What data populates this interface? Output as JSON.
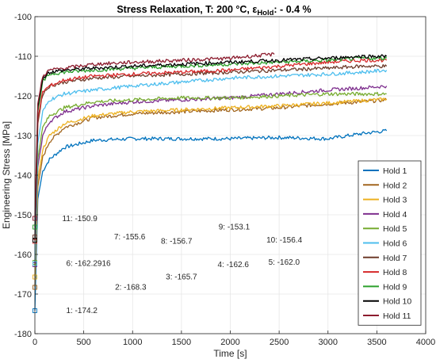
{
  "chart_data": {
    "type": "line",
    "title_main": "Stress Relaxation, T: 200 °C, ε",
    "title_sub": "Hold",
    "title_tail": ": - 0.4 %",
    "xlabel": "Time [s]",
    "ylabel": "Engineering Stress [MPa]",
    "xlim": [
      0,
      4000
    ],
    "ylim": [
      -180,
      -100
    ],
    "xticks": [
      0,
      500,
      1000,
      1500,
      2000,
      2500,
      3000,
      3500,
      4000
    ],
    "yticks": [
      -100,
      -110,
      -120,
      -130,
      -140,
      -150,
      -160,
      -170,
      -180
    ],
    "grid": true,
    "legend_position": "bottom-right",
    "series": [
      {
        "name": "Hold 1",
        "color": "#0072BD",
        "start": -174.2,
        "x": [
          0,
          30,
          80,
          150,
          300,
          600,
          1000,
          1500,
          2000,
          2500,
          3000,
          3350,
          3600
        ],
        "y": [
          -174.2,
          -146,
          -139,
          -136,
          -133,
          -131.2,
          -130.8,
          -130.8,
          -130.8,
          -130.5,
          -130.8,
          -129.5,
          -128.8
        ]
      },
      {
        "name": "Hold 2",
        "color": "#A2661F",
        "start": -168.3,
        "x": [
          0,
          30,
          80,
          150,
          300,
          600,
          1000,
          1500,
          2000,
          2500,
          3000,
          3350,
          3600
        ],
        "y": [
          -168.3,
          -143,
          -135.5,
          -131.5,
          -128,
          -125.5,
          -124.5,
          -124,
          -123.5,
          -123,
          -122,
          -121.5,
          -121
        ]
      },
      {
        "name": "Hold 3",
        "color": "#EDB120",
        "start": -165.7,
        "x": [
          0,
          30,
          80,
          150,
          300,
          600,
          1000,
          1500,
          2000,
          2500,
          3000,
          3350,
          3600
        ],
        "y": [
          -165.7,
          -141,
          -133.5,
          -130,
          -127,
          -125,
          -124,
          -123.5,
          -123,
          -122.5,
          -121.8,
          -121.2,
          -120.8
        ]
      },
      {
        "name": "Hold 4",
        "color": "#7E2F8E",
        "start": -162.6,
        "x": [
          0,
          30,
          80,
          150,
          300,
          600,
          1000,
          1500,
          2000,
          2500,
          3000,
          3350,
          3600
        ],
        "y": [
          -162.6,
          -138,
          -130,
          -126.5,
          -124,
          -122.5,
          -121.5,
          -121,
          -120.5,
          -119.5,
          -118.5,
          -118,
          -117.5
        ]
      },
      {
        "name": "Hold 5",
        "color": "#77AC30",
        "start": -162.0,
        "x": [
          0,
          30,
          80,
          150,
          300,
          600,
          1000,
          1500,
          2000,
          2500,
          3000,
          3350,
          3600
        ],
        "y": [
          -162.0,
          -136,
          -128,
          -125,
          -123,
          -121.5,
          -121,
          -120.5,
          -120.5,
          -120,
          -119.5,
          -119.5,
          -119.5
        ]
      },
      {
        "name": "Hold 6",
        "color": "#4DBEEE",
        "start": -162.2916,
        "x": [
          0,
          30,
          80,
          150,
          300,
          600,
          1000,
          1500,
          2000,
          2500,
          3000,
          3350,
          3600
        ],
        "y": [
          -162.3,
          -132,
          -124,
          -121,
          -119.5,
          -118.5,
          -117.5,
          -116.5,
          -115.5,
          -115,
          -114.5,
          -114,
          -113.5
        ]
      },
      {
        "name": "Hold 7",
        "color": "#6E3B2A",
        "start": -155.6,
        "x": [
          0,
          30,
          80,
          150,
          300,
          600,
          1000,
          1500,
          2000,
          2500,
          3000,
          3350,
          3600
        ],
        "y": [
          -155.6,
          -127,
          -119.5,
          -117.5,
          -116.5,
          -115.5,
          -115,
          -114.5,
          -114,
          -113.5,
          -113,
          -112.5,
          -112.5
        ]
      },
      {
        "name": "Hold 8",
        "color": "#D62728",
        "start": -156.7,
        "x": [
          0,
          30,
          80,
          150,
          300,
          600,
          1000,
          1500,
          2000,
          2500,
          3000,
          3350,
          3600
        ],
        "y": [
          -156.7,
          -126,
          -119,
          -117.5,
          -116,
          -115,
          -114.5,
          -114,
          -113.5,
          -112.5,
          -111.5,
          -111,
          -111
        ]
      },
      {
        "name": "Hold 9",
        "color": "#2CA02C",
        "start": -153.1,
        "x": [
          0,
          30,
          80,
          150,
          300,
          600,
          1000,
          1500,
          2000,
          2500,
          3000,
          3350,
          3600
        ],
        "y": [
          -153.1,
          -124,
          -116.5,
          -114.5,
          -114,
          -113.5,
          -113,
          -112.5,
          -112,
          -111.5,
          -111,
          -110.5,
          -110.5
        ]
      },
      {
        "name": "Hold 10",
        "color": "#000000",
        "start": -156.4,
        "x": [
          0,
          30,
          80,
          150,
          300,
          600,
          1000,
          1500,
          2000,
          2500,
          3000,
          3350,
          3600
        ],
        "y": [
          -156.4,
          -123,
          -115.5,
          -114,
          -113.5,
          -113,
          -112.5,
          -112,
          -111.5,
          -111,
          -110.5,
          -110,
          -110
        ]
      },
      {
        "name": "Hold 11",
        "color": "#8C1C2E",
        "start": -150.9,
        "x": [
          0,
          30,
          80,
          150,
          300,
          600,
          1000,
          1500,
          2000,
          2200,
          2450
        ],
        "y": [
          -150.9,
          -122,
          -115,
          -113.5,
          -113,
          -112,
          -111.5,
          -111,
          -110.5,
          -110,
          -109.5
        ]
      }
    ],
    "annotations": [
      {
        "text": "11: -150.9",
        "x": 280,
        "y": -151
      },
      {
        "text": "7: -155.6",
        "x": 810,
        "y": -155.6
      },
      {
        "text": "8: -156.7",
        "x": 1290,
        "y": -156.7
      },
      {
        "text": "9: -153.1",
        "x": 1880,
        "y": -153.1
      },
      {
        "text": "10: -156.4",
        "x": 2370,
        "y": -156.4
      },
      {
        "text": "6: -162.2916",
        "x": 320,
        "y": -162.3
      },
      {
        "text": "4: -162.6",
        "x": 1870,
        "y": -162.6
      },
      {
        "text": "5: -162.0",
        "x": 2390,
        "y": -162.0
      },
      {
        "text": "3: -165.7",
        "x": 1340,
        "y": -165.7
      },
      {
        "text": "2: -168.3",
        "x": 820,
        "y": -168.3
      },
      {
        "text": "1: -174.2",
        "x": 320,
        "y": -174.2
      }
    ]
  }
}
